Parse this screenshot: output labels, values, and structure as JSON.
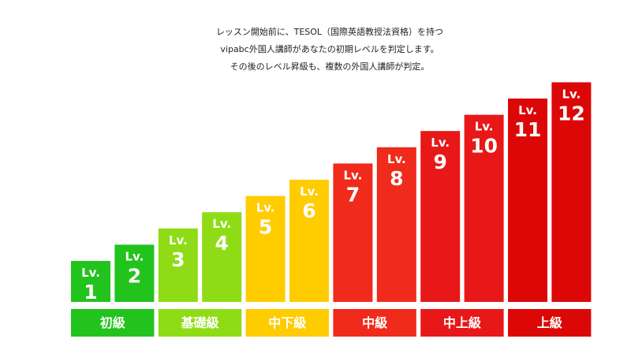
{
  "description": [
    "レッスン開始前に、TESOL（国際英語教授法資格）を持つ",
    "vipabc外国人講師があなたの初期レベルを判定します。",
    "その後のレベル昇級も、複数の外国人講師が判定。"
  ],
  "level_prefix": "Lv.",
  "levels": [
    1,
    2,
    3,
    4,
    5,
    6,
    7,
    8,
    9,
    10,
    11,
    12
  ],
  "groups": [
    {
      "label": "初級",
      "color": "#22c31c"
    },
    {
      "label": "基礎級",
      "color": "#8fdc16"
    },
    {
      "label": "中下級",
      "color": "#ffcc00"
    },
    {
      "label": "中級",
      "color": "#f02b1b"
    },
    {
      "label": "中上級",
      "color": "#e81818"
    },
    {
      "label": "上級",
      "color": "#dc0808"
    }
  ]
}
